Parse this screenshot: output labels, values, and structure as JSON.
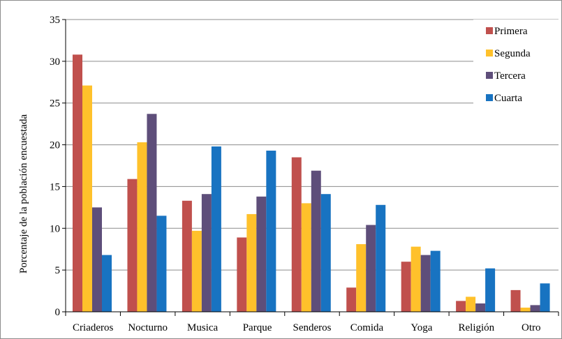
{
  "chart_data": {
    "type": "bar",
    "title": "",
    "xlabel": "",
    "ylabel": "Porcentaje de la población encuestada",
    "ylim": [
      0,
      35
    ],
    "yticks": [
      0,
      5,
      10,
      15,
      20,
      25,
      30,
      35
    ],
    "grid": true,
    "legend_position": "top-right",
    "categories": [
      "Criaderos",
      "Nocturno",
      "Musica",
      "Parque",
      "Senderos",
      "Comida",
      "Yoga",
      "Religión",
      "Otro"
    ],
    "series": [
      {
        "name": "Primera",
        "color": "#C0504D",
        "values": [
          30.8,
          15.9,
          13.3,
          8.9,
          18.5,
          2.9,
          6.0,
          1.3,
          2.6
        ]
      },
      {
        "name": "Segunda",
        "color": "#FFC12B",
        "values": [
          27.1,
          20.3,
          9.7,
          11.7,
          13.0,
          8.1,
          7.8,
          1.8,
          0.5
        ]
      },
      {
        "name": "Tercera",
        "color": "#5E4E7A",
        "values": [
          12.5,
          23.7,
          14.1,
          13.8,
          16.9,
          10.4,
          6.8,
          1.0,
          0.8
        ]
      },
      {
        "name": "Cuarta",
        "color": "#1873C1",
        "values": [
          6.8,
          11.5,
          19.8,
          19.3,
          14.1,
          12.8,
          7.3,
          5.2,
          3.4
        ]
      }
    ]
  }
}
